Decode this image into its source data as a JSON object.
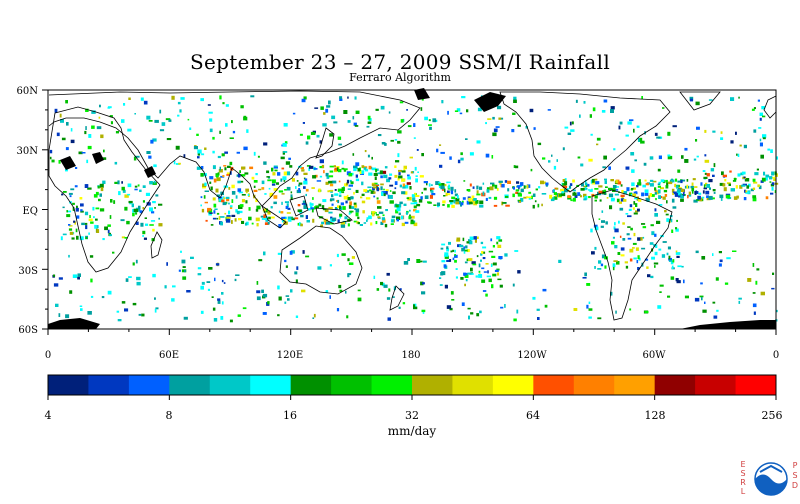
{
  "title": "September 23 – 27, 2009 SSM/I Rainfall",
  "subtitle": "Ferraro Algorithm",
  "lat_labels": [
    "60N",
    "30N",
    "EQ",
    "30S",
    "60S"
  ],
  "lon_labels": [
    "0",
    "60E",
    "120E",
    "180",
    "120W",
    "60W",
    "0"
  ],
  "legend": {
    "tick_labels": [
      "4",
      "8",
      "16",
      "32",
      "64",
      "128",
      "256"
    ],
    "unit": "mm/day",
    "colors": [
      "#00207a",
      "#0038c0",
      "#0060ff",
      "#00a0a0",
      "#00c8c8",
      "#00ffff",
      "#009000",
      "#00c000",
      "#00f000",
      "#b0b000",
      "#e0e000",
      "#ffff00",
      "#ff5000",
      "#ff8000",
      "#ffa000",
      "#900000",
      "#c80000",
      "#ff0000"
    ]
  },
  "logo": {
    "left_letters": [
      "E",
      "S",
      "R",
      "L"
    ],
    "right_letters": [
      "P",
      "S",
      "D"
    ],
    "emblem": "NOAA",
    "accent": "#d04040",
    "emblem_color": "#1060c0"
  }
}
